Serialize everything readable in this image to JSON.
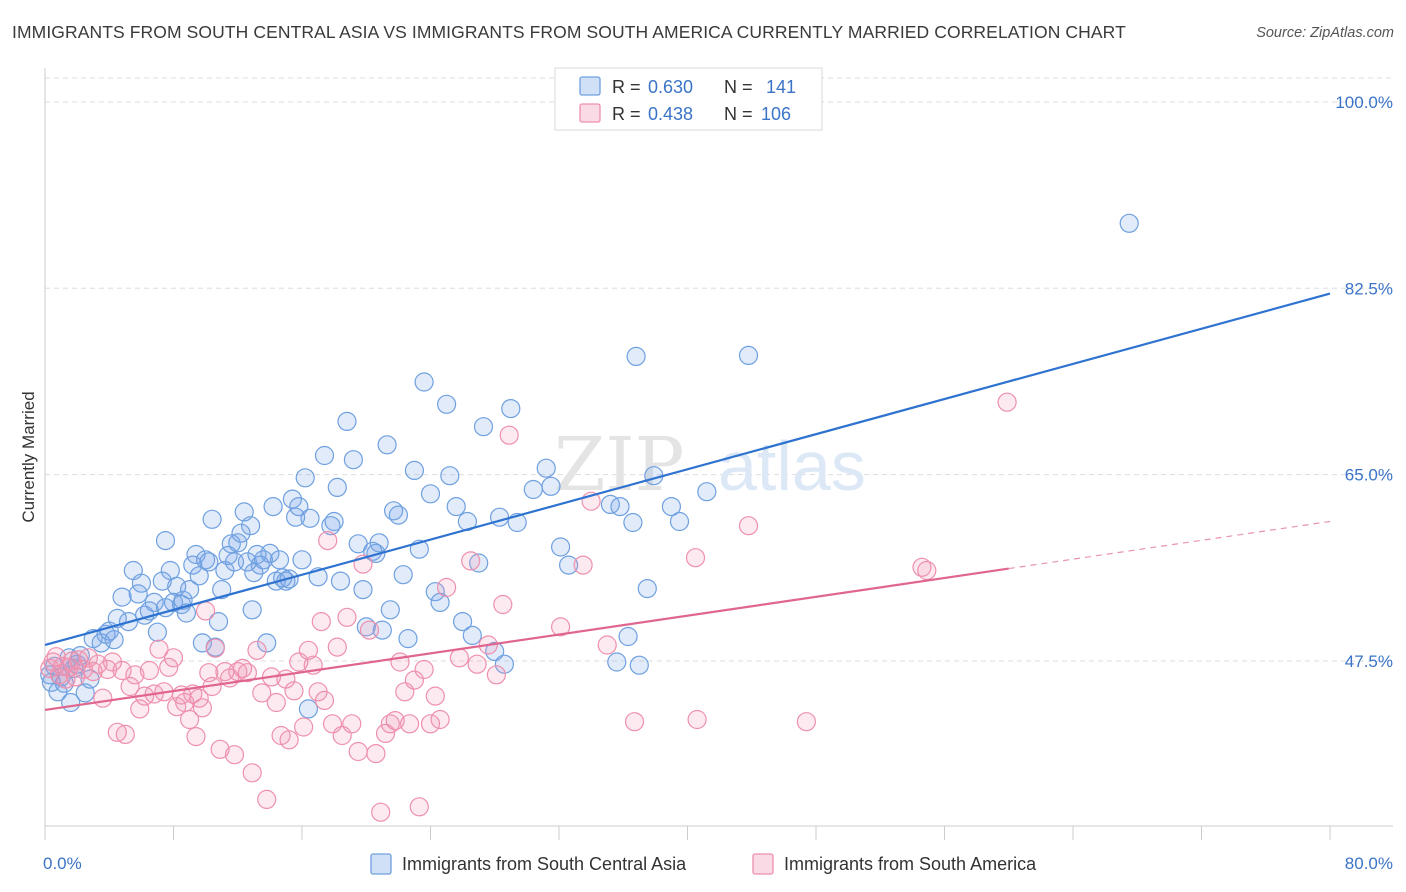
{
  "title": "IMMIGRANTS FROM SOUTH CENTRAL ASIA VS IMMIGRANTS FROM SOUTH AMERICA CURRENTLY MARRIED CORRELATION CHART",
  "source": "Source: ZipAtlas.com",
  "watermark": {
    "zip": "ZIP",
    "atlas": "atlas"
  },
  "colors": {
    "blue": "#6fa0e0",
    "blue_fill": "rgba(120,165,230,0.22)",
    "blue_line": "#2f73d0",
    "pink": "#ee90ad",
    "pink_fill": "rgba(240,150,180,0.20)",
    "pink_line": "#e0668f",
    "grid": "#dddddd",
    "tick_text": "#3b74c7"
  },
  "legend": {
    "rows": [
      {
        "r_label": "R = ",
        "r_value": "0.630",
        "n_label": "N = ",
        "n_value": "141",
        "series": "blue"
      },
      {
        "r_label": "R = ",
        "r_value": "0.438",
        "n_label": "N = ",
        "n_value": "106",
        "series": "pink"
      }
    ]
  },
  "chart_data": {
    "type": "scatter",
    "title": "IMMIGRANTS FROM SOUTH CENTRAL ASIA VS IMMIGRANTS FROM SOUTH AMERICA CURRENTLY MARRIED CORRELATION CHART",
    "xlabel": "",
    "ylabel": "Currently Married",
    "xlim": [
      0,
      80
    ],
    "ylim": [
      32,
      103
    ],
    "y_ticks": [
      {
        "value": 47.5,
        "label": "47.5%"
      },
      {
        "value": 65.0,
        "label": "65.0%"
      },
      {
        "value": 82.5,
        "label": "82.5%"
      },
      {
        "value": 100.0,
        "label": "100.0%"
      }
    ],
    "x_tick_labels": [
      {
        "value": 0,
        "label": "0.0%"
      },
      {
        "value": 80,
        "label": "80.0%"
      }
    ],
    "x_minor_ticks": [
      0,
      8,
      16,
      24,
      32,
      40,
      48,
      56,
      64,
      72,
      80
    ],
    "grid": true,
    "legend_position": "top-center",
    "series": [
      {
        "name": "Immigrants from South Central Asia",
        "color": "blue",
        "R": 0.63,
        "N": 141,
        "trend": {
          "x": [
            0,
            80
          ],
          "y": [
            49.0,
            82.0
          ],
          "dashed_from": null
        },
        "points": [
          [
            0.3,
            46.2
          ],
          [
            0.4,
            45.5
          ],
          [
            0.6,
            47.0
          ],
          [
            0.8,
            44.6
          ],
          [
            1.0,
            46.0
          ],
          [
            1.2,
            45.4
          ],
          [
            1.5,
            47.8
          ],
          [
            1.6,
            43.6
          ],
          [
            1.8,
            46.8
          ],
          [
            2.0,
            47.2
          ],
          [
            2.2,
            48.0
          ],
          [
            2.5,
            44.5
          ],
          [
            2.8,
            45.8
          ],
          [
            3.0,
            49.6
          ],
          [
            3.5,
            49.2
          ],
          [
            3.8,
            50.0
          ],
          [
            4.0,
            50.3
          ],
          [
            4.3,
            49.5
          ],
          [
            4.5,
            51.5
          ],
          [
            4.8,
            53.5
          ],
          [
            5.2,
            51.2
          ],
          [
            5.5,
            56.0
          ],
          [
            5.8,
            53.8
          ],
          [
            6.0,
            54.8
          ],
          [
            6.2,
            51.8
          ],
          [
            6.5,
            52.2
          ],
          [
            6.8,
            53.0
          ],
          [
            7.0,
            50.2
          ],
          [
            7.3,
            55.0
          ],
          [
            7.5,
            52.5
          ],
          [
            7.5,
            58.8
          ],
          [
            7.8,
            56.0
          ],
          [
            8.0,
            53.0
          ],
          [
            8.2,
            54.5
          ],
          [
            8.5,
            52.8
          ],
          [
            8.6,
            53.2
          ],
          [
            8.8,
            52.0
          ],
          [
            9.0,
            54.2
          ],
          [
            9.2,
            56.5
          ],
          [
            9.4,
            57.5
          ],
          [
            9.6,
            55.5
          ],
          [
            9.8,
            49.2
          ],
          [
            10.0,
            57.0
          ],
          [
            10.2,
            56.8
          ],
          [
            10.4,
            60.8
          ],
          [
            10.6,
            48.8
          ],
          [
            10.8,
            51.2
          ],
          [
            11.0,
            54.2
          ],
          [
            11.2,
            56.0
          ],
          [
            11.4,
            57.4
          ],
          [
            11.6,
            58.5
          ],
          [
            11.8,
            56.8
          ],
          [
            12.0,
            58.6
          ],
          [
            12.2,
            59.5
          ],
          [
            12.4,
            61.5
          ],
          [
            12.6,
            56.8
          ],
          [
            12.8,
            60.2
          ],
          [
            12.9,
            52.3
          ],
          [
            13.0,
            55.8
          ],
          [
            13.2,
            57.5
          ],
          [
            13.4,
            56.5
          ],
          [
            13.6,
            57.0
          ],
          [
            13.8,
            49.2
          ],
          [
            14.0,
            57.6
          ],
          [
            14.2,
            62.0
          ],
          [
            14.4,
            55.0
          ],
          [
            14.6,
            57.0
          ],
          [
            14.8,
            55.3
          ],
          [
            15.0,
            55.0
          ],
          [
            15.2,
            55.2
          ],
          [
            15.4,
            62.7
          ],
          [
            15.6,
            61.0
          ],
          [
            15.8,
            62.0
          ],
          [
            16.0,
            57.0
          ],
          [
            16.2,
            64.7
          ],
          [
            16.4,
            43.0
          ],
          [
            16.5,
            60.9
          ],
          [
            17.0,
            55.4
          ],
          [
            17.4,
            66.8
          ],
          [
            17.8,
            60.2
          ],
          [
            18.0,
            60.6
          ],
          [
            18.2,
            63.8
          ],
          [
            18.4,
            55.0
          ],
          [
            18.8,
            70.0
          ],
          [
            19.2,
            66.4
          ],
          [
            19.5,
            58.5
          ],
          [
            19.8,
            54.2
          ],
          [
            20.0,
            50.7
          ],
          [
            20.4,
            57.8
          ],
          [
            20.6,
            57.6
          ],
          [
            20.8,
            58.6
          ],
          [
            21.0,
            50.4
          ],
          [
            21.3,
            67.8
          ],
          [
            21.5,
            52.3
          ],
          [
            21.7,
            61.6
          ],
          [
            22.0,
            61.2
          ],
          [
            22.3,
            55.6
          ],
          [
            22.6,
            49.6
          ],
          [
            23.0,
            65.4
          ],
          [
            23.3,
            58.0
          ],
          [
            23.6,
            73.7
          ],
          [
            24.0,
            63.2
          ],
          [
            24.3,
            54.0
          ],
          [
            24.6,
            53.0
          ],
          [
            25.0,
            71.6
          ],
          [
            25.2,
            64.9
          ],
          [
            25.6,
            62.0
          ],
          [
            26.0,
            51.2
          ],
          [
            26.3,
            60.6
          ],
          [
            26.6,
            49.9
          ],
          [
            27.0,
            56.7
          ],
          [
            27.3,
            69.5
          ],
          [
            28.0,
            48.4
          ],
          [
            28.3,
            61.0
          ],
          [
            28.6,
            47.2
          ],
          [
            29.0,
            71.2
          ],
          [
            29.4,
            60.5
          ],
          [
            30.4,
            63.6
          ],
          [
            31.2,
            65.6
          ],
          [
            31.5,
            63.9
          ],
          [
            32.1,
            58.2
          ],
          [
            32.6,
            56.5
          ],
          [
            35.2,
            62.2
          ],
          [
            35.6,
            47.4
          ],
          [
            35.8,
            62.0
          ],
          [
            36.3,
            49.8
          ],
          [
            36.6,
            60.5
          ],
          [
            36.8,
            76.1
          ],
          [
            37.0,
            47.1
          ],
          [
            37.5,
            54.3
          ],
          [
            37.9,
            64.9
          ],
          [
            39.0,
            62.0
          ],
          [
            39.5,
            60.6
          ],
          [
            41.2,
            63.4
          ],
          [
            43.8,
            76.2
          ],
          [
            67.5,
            88.6
          ]
        ]
      },
      {
        "name": "Immigrants from South America",
        "color": "pink",
        "R": 0.438,
        "N": 106,
        "trend": {
          "x": [
            0,
            80
          ],
          "y": [
            42.9,
            60.6
          ],
          "dashed_from": 60
        },
        "points": [
          [
            0.3,
            46.8
          ],
          [
            0.5,
            47.4
          ],
          [
            0.7,
            47.9
          ],
          [
            0.9,
            46.2
          ],
          [
            1.1,
            47.0
          ],
          [
            1.3,
            45.8
          ],
          [
            1.5,
            46.9
          ],
          [
            1.7,
            47.5
          ],
          [
            1.9,
            46.0
          ],
          [
            2.1,
            47.6
          ],
          [
            2.4,
            46.7
          ],
          [
            2.7,
            47.8
          ],
          [
            3.0,
            46.5
          ],
          [
            3.3,
            47.2
          ],
          [
            3.6,
            44.0
          ],
          [
            3.9,
            46.7
          ],
          [
            4.2,
            47.4
          ],
          [
            4.5,
            40.8
          ],
          [
            4.8,
            46.6
          ],
          [
            5.0,
            40.6
          ],
          [
            5.3,
            45.1
          ],
          [
            5.6,
            46.2
          ],
          [
            5.9,
            43.0
          ],
          [
            6.2,
            44.2
          ],
          [
            6.5,
            46.6
          ],
          [
            6.8,
            44.4
          ],
          [
            7.1,
            48.6
          ],
          [
            7.4,
            44.6
          ],
          [
            7.7,
            46.9
          ],
          [
            8.0,
            47.8
          ],
          [
            8.2,
            43.2
          ],
          [
            8.5,
            44.3
          ],
          [
            8.7,
            43.6
          ],
          [
            9.0,
            42.0
          ],
          [
            9.2,
            44.4
          ],
          [
            9.4,
            40.4
          ],
          [
            9.6,
            44.0
          ],
          [
            9.8,
            43.1
          ],
          [
            10.0,
            52.2
          ],
          [
            10.2,
            46.4
          ],
          [
            10.4,
            45.1
          ],
          [
            10.6,
            48.7
          ],
          [
            10.9,
            39.2
          ],
          [
            11.2,
            46.5
          ],
          [
            11.5,
            45.9
          ],
          [
            11.8,
            38.7
          ],
          [
            12.0,
            46.5
          ],
          [
            12.3,
            46.8
          ],
          [
            12.6,
            46.4
          ],
          [
            12.9,
            37.0
          ],
          [
            13.2,
            48.5
          ],
          [
            13.5,
            44.5
          ],
          [
            13.8,
            34.5
          ],
          [
            14.1,
            46.0
          ],
          [
            14.4,
            43.6
          ],
          [
            14.7,
            40.5
          ],
          [
            15.0,
            45.8
          ],
          [
            15.2,
            40.1
          ],
          [
            15.5,
            44.7
          ],
          [
            15.8,
            47.4
          ],
          [
            16.1,
            41.3
          ],
          [
            16.4,
            48.5
          ],
          [
            16.7,
            47.1
          ],
          [
            17.0,
            44.6
          ],
          [
            17.2,
            51.2
          ],
          [
            17.4,
            43.8
          ],
          [
            17.6,
            58.8
          ],
          [
            17.9,
            41.6
          ],
          [
            18.2,
            48.8
          ],
          [
            18.5,
            40.5
          ],
          [
            18.8,
            51.6
          ],
          [
            19.1,
            41.6
          ],
          [
            19.5,
            39.0
          ],
          [
            19.8,
            56.6
          ],
          [
            20.2,
            50.4
          ],
          [
            20.6,
            38.8
          ],
          [
            20.9,
            33.3
          ],
          [
            21.2,
            40.7
          ],
          [
            21.5,
            41.6
          ],
          [
            21.8,
            41.9
          ],
          [
            22.1,
            47.4
          ],
          [
            22.4,
            44.6
          ],
          [
            22.7,
            41.6
          ],
          [
            23.0,
            45.7
          ],
          [
            23.3,
            33.8
          ],
          [
            23.6,
            46.7
          ],
          [
            24.0,
            41.6
          ],
          [
            24.3,
            44.2
          ],
          [
            24.6,
            42.0
          ],
          [
            25.0,
            54.4
          ],
          [
            25.8,
            47.8
          ],
          [
            26.5,
            56.9
          ],
          [
            26.9,
            47.2
          ],
          [
            27.6,
            49.0
          ],
          [
            28.1,
            46.2
          ],
          [
            28.5,
            52.8
          ],
          [
            28.9,
            68.7
          ],
          [
            32.1,
            50.7
          ],
          [
            33.5,
            56.5
          ],
          [
            34.0,
            62.5
          ],
          [
            35.0,
            49.0
          ],
          [
            36.7,
            41.8
          ],
          [
            40.5,
            57.2
          ],
          [
            40.6,
            42.0
          ],
          [
            43.8,
            60.2
          ],
          [
            47.4,
            41.8
          ],
          [
            54.6,
            56.3
          ],
          [
            54.9,
            56.0
          ],
          [
            59.9,
            71.8
          ]
        ]
      }
    ]
  },
  "bottom_legend": [
    {
      "label": "Immigrants from South Central Asia",
      "color": "blue"
    },
    {
      "label": "Immigrants from South America",
      "color": "pink"
    }
  ]
}
